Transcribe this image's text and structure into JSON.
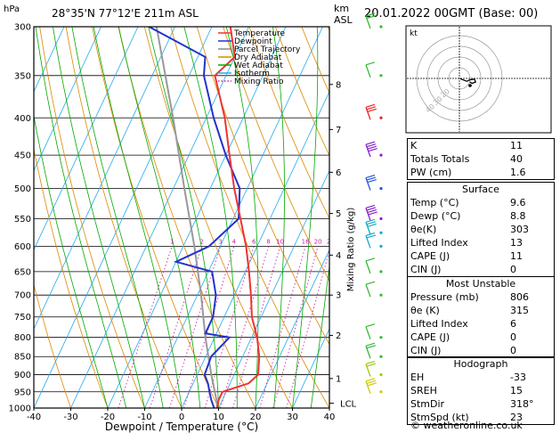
{
  "header": {
    "hpa_label": "hPa",
    "location": "28°35'N  77°12'E  211m  ASL",
    "km_label": "km",
    "asl_label": "ASL",
    "datetime": "20.01.2022  00GMT  (Base: 00)"
  },
  "legend": [
    {
      "label": "Temperature",
      "color": "#ee3333"
    },
    {
      "label": "Dewpoint",
      "color": "#2233cc"
    },
    {
      "label": "Parcel Trajectory",
      "color": "#888888"
    },
    {
      "label": "Dry Adiabat",
      "color": "#dd8800"
    },
    {
      "label": "Wet Adiabat",
      "color": "#00aa00"
    },
    {
      "label": "Isotherm",
      "color": "#22aaee"
    },
    {
      "label": "Mixing Ratio",
      "color": "#cc22aa"
    }
  ],
  "chart_data": {
    "type": "skew-t",
    "xlabel": "Dewpoint / Temperature (°C)",
    "ylabel_left": "hPa",
    "ylabel_right": "Mixing Ratio (g/kg)",
    "x_ticks": [
      -40,
      -30,
      -20,
      -10,
      0,
      10,
      20,
      30,
      40
    ],
    "pressure_ticks": [
      300,
      350,
      400,
      450,
      500,
      550,
      600,
      650,
      700,
      750,
      800,
      850,
      900,
      950,
      1000
    ],
    "km_ticks": [
      {
        "km": "1",
        "p": 911
      },
      {
        "km": "2",
        "p": 795
      },
      {
        "km": "3",
        "p": 700
      },
      {
        "km": "4",
        "p": 617
      },
      {
        "km": "5",
        "p": 541
      },
      {
        "km": "6",
        "p": 475
      },
      {
        "km": "7",
        "p": 415
      },
      {
        "km": "8",
        "p": 360
      }
    ],
    "lcl_label": "LCL",
    "lcl_pressure": 985,
    "mixing_ratio_labels": [
      "1",
      "2",
      "3",
      "4",
      "6",
      "8",
      "10",
      "16",
      "20",
      "25"
    ],
    "mixing_ratio_values": [
      1,
      2,
      3,
      4,
      6,
      8,
      10,
      16,
      20,
      25
    ],
    "temperature": [
      [
        1000,
        9.6
      ],
      [
        975,
        9.0
      ],
      [
        950,
        9.0
      ],
      [
        925,
        15.0
      ],
      [
        900,
        16.5
      ],
      [
        850,
        14.5
      ],
      [
        800,
        11.5
      ],
      [
        750,
        7.5
      ],
      [
        700,
        4.5
      ],
      [
        650,
        1.0
      ],
      [
        600,
        -3.0
      ],
      [
        550,
        -8.0
      ],
      [
        500,
        -13.5
      ],
      [
        450,
        -19.0
      ],
      [
        400,
        -25.0
      ],
      [
        350,
        -33.0
      ],
      [
        330,
        -30.0
      ],
      [
        300,
        -35.0
      ]
    ],
    "dewpoint": [
      [
        1000,
        8.8
      ],
      [
        975,
        7.0
      ],
      [
        950,
        5.5
      ],
      [
        925,
        4.0
      ],
      [
        900,
        2.0
      ],
      [
        850,
        1.5
      ],
      [
        800,
        4.0
      ],
      [
        790,
        -3.0
      ],
      [
        750,
        -3.0
      ],
      [
        700,
        -5.0
      ],
      [
        650,
        -9.0
      ],
      [
        630,
        -20.0
      ],
      [
        600,
        -13.0
      ],
      [
        550,
        -8.5
      ],
      [
        500,
        -12.0
      ],
      [
        450,
        -20.0
      ],
      [
        400,
        -28.0
      ],
      [
        350,
        -36.0
      ],
      [
        330,
        -38.0
      ],
      [
        300,
        -57.0
      ]
    ],
    "parcel": [
      [
        1000,
        9.6
      ],
      [
        985,
        9.0
      ],
      [
        900,
        3.8
      ],
      [
        800,
        -2.5
      ],
      [
        700,
        -9.0
      ],
      [
        600,
        -17.0
      ],
      [
        500,
        -27.0
      ],
      [
        400,
        -39.0
      ],
      [
        300,
        -55.0
      ]
    ]
  },
  "hodograph": {
    "label": "kt",
    "ring_labels": [
      "20",
      "30",
      "40"
    ],
    "trace": [
      [
        0.8,
        0.2
      ],
      [
        2.5,
        0.8
      ],
      [
        6.5,
        2.0
      ],
      [
        9.0,
        1.0
      ],
      [
        13.0,
        0.5
      ],
      [
        14.0,
        2.5
      ],
      [
        11.0,
        3.5
      ],
      [
        9.0,
        2.5
      ]
    ]
  },
  "wind_barbs": [
    {
      "p": 300,
      "color": "#33bb33",
      "flags": 2
    },
    {
      "p": 350,
      "color": "#33bb33",
      "flags": 1
    },
    {
      "p": 400,
      "color": "#ee2222",
      "flags": 3
    },
    {
      "p": 450,
      "color": "#8822cc",
      "flags": 4
    },
    {
      "p": 500,
      "color": "#2255dd",
      "flags": 3
    },
    {
      "p": 550,
      "color": "#8822cc",
      "flags": 4
    },
    {
      "p": 575,
      "color": "#11aacc",
      "flags": 3
    },
    {
      "p": 600,
      "color": "#11aacc",
      "flags": 2
    },
    {
      "p": 650,
      "color": "#33bb33",
      "flags": 1
    },
    {
      "p": 700,
      "color": "#33bb33",
      "flags": 1
    },
    {
      "p": 800,
      "color": "#33bb33",
      "flags": 1
    },
    {
      "p": 850,
      "color": "#33bb33",
      "flags": 2
    },
    {
      "p": 900,
      "color": "#99cc00",
      "flags": 2
    },
    {
      "p": 950,
      "color": "#cccc00",
      "flags": 3
    }
  ],
  "indices": [
    {
      "label": "K",
      "value": "11"
    },
    {
      "label": "Totals Totals",
      "value": "40"
    },
    {
      "label": "PW (cm)",
      "value": "1.6"
    }
  ],
  "surface": {
    "title": "Surface",
    "rows": [
      {
        "label": "Temp (°C)",
        "value": "9.6"
      },
      {
        "label": "Dewp (°C)",
        "value": "8.8"
      },
      {
        "label": "θe(K)",
        "value": "303"
      },
      {
        "label": "Lifted Index",
        "value": "13"
      },
      {
        "label": "CAPE (J)",
        "value": "11"
      },
      {
        "label": "CIN (J)",
        "value": "0"
      }
    ]
  },
  "most_unstable": {
    "title": "Most Unstable",
    "rows": [
      {
        "label": "Pressure (mb)",
        "value": "806"
      },
      {
        "label": "θe (K)",
        "value": "315"
      },
      {
        "label": "Lifted Index",
        "value": "6"
      },
      {
        "label": "CAPE (J)",
        "value": "0"
      },
      {
        "label": "CIN (J)",
        "value": "0"
      }
    ]
  },
  "hodograph_table": {
    "title": "Hodograph",
    "rows": [
      {
        "label": "EH",
        "value": "-33"
      },
      {
        "label": "SREH",
        "value": "15"
      },
      {
        "label": "StmDir",
        "value": "318°"
      },
      {
        "label": "StmSpd (kt)",
        "value": "23"
      }
    ]
  },
  "footer": {
    "copyright": "© weatheronline.co.uk"
  }
}
